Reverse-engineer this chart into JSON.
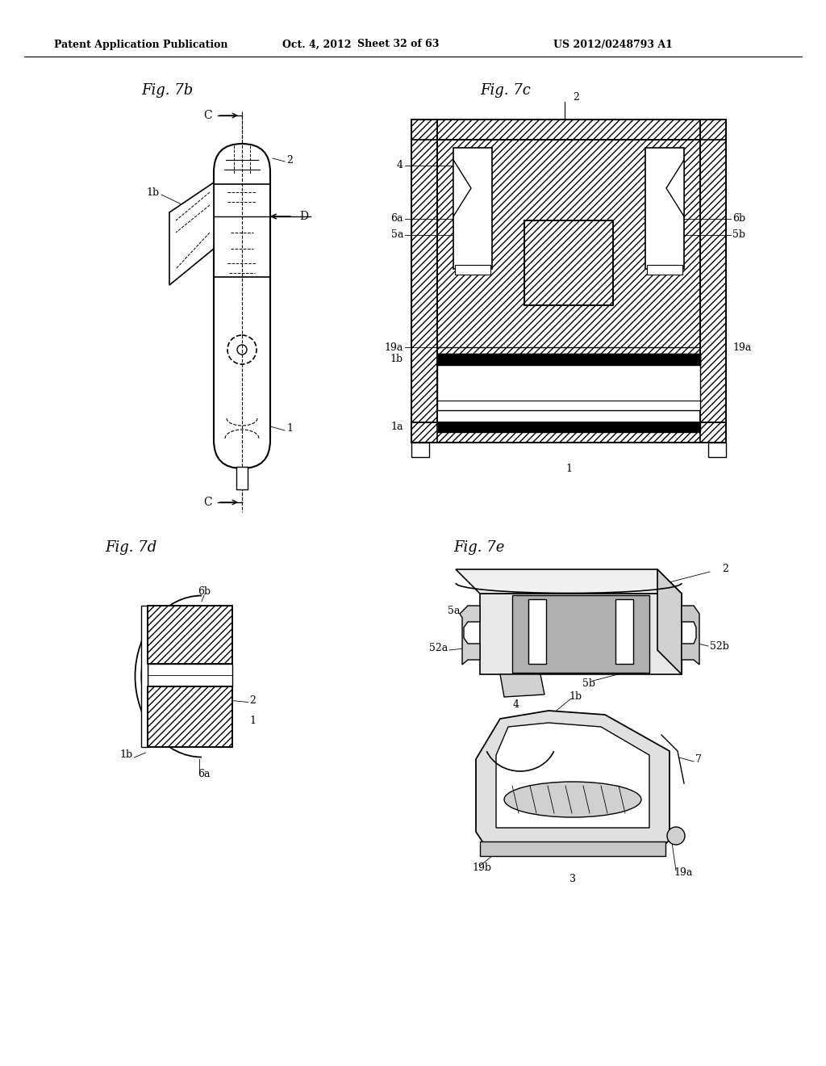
{
  "header_left": "Patent Application Publication",
  "header_center": "Oct. 4, 2012",
  "header_sheet": "Sheet 32 of 63",
  "header_right": "US 2012/0248793 A1",
  "fig7b_title": "Fig. 7b",
  "fig7c_title": "Fig. 7c",
  "fig7d_title": "Fig. 7d",
  "fig7e_title": "Fig. 7e",
  "background_color": "#ffffff",
  "line_color": "#000000"
}
